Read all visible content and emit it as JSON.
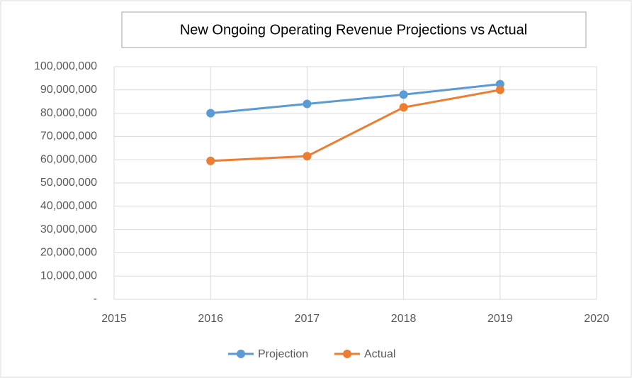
{
  "chart_data": {
    "type": "line",
    "title": "New Ongoing Operating Revenue Projections vs Actual",
    "x": [
      2016,
      2017,
      2018,
      2019
    ],
    "series": [
      {
        "name": "Projection",
        "color": "#5b9bd5",
        "values": [
          80000000,
          84000000,
          88000000,
          92500000
        ]
      },
      {
        "name": "Actual",
        "color": "#ed7d31",
        "values": [
          59500000,
          61500000,
          82500000,
          90000000
        ]
      }
    ],
    "xlim": [
      2015,
      2020
    ],
    "xticks": [
      2015,
      2016,
      2017,
      2018,
      2019,
      2020
    ],
    "ylim": [
      0,
      100000000
    ],
    "yticks": [
      {
        "value": 0,
        "label": "-"
      },
      {
        "value": 10000000,
        "label": "10,000,000"
      },
      {
        "value": 20000000,
        "label": "20,000,000"
      },
      {
        "value": 30000000,
        "label": "30,000,000"
      },
      {
        "value": 40000000,
        "label": "40,000,000"
      },
      {
        "value": 50000000,
        "label": "50,000,000"
      },
      {
        "value": 60000000,
        "label": "60,000,000"
      },
      {
        "value": 70000000,
        "label": "70,000,000"
      },
      {
        "value": 80000000,
        "label": "80,000,000"
      },
      {
        "value": 90000000,
        "label": "90,000,000"
      },
      {
        "value": 100000000,
        "label": "100,000,000"
      }
    ],
    "grid": true,
    "legend": "bottom"
  }
}
